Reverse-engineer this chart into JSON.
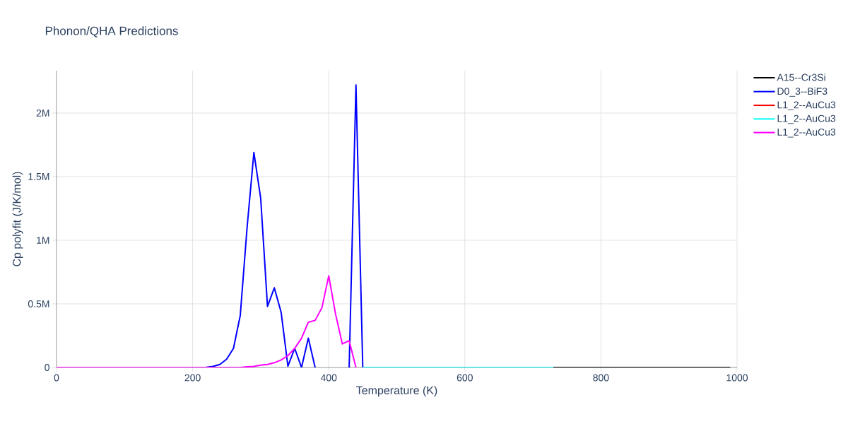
{
  "chart_data": {
    "type": "line",
    "title": "Phonon/QHA Predictions",
    "xlabel": "Temperature (K)",
    "ylabel": "Cp polyfit (J/K/mol)",
    "x": [
      0,
      10,
      20,
      30,
      40,
      50,
      60,
      70,
      80,
      90,
      100,
      110,
      120,
      130,
      140,
      150,
      160,
      170,
      180,
      190,
      200,
      210,
      220,
      230,
      240,
      250,
      260,
      270,
      280,
      290,
      300,
      310,
      320,
      330,
      340,
      350,
      360,
      370,
      380,
      390,
      400,
      410,
      420,
      430,
      440,
      450,
      460,
      470,
      480,
      490,
      500,
      510,
      520,
      530,
      540,
      550,
      560,
      570,
      580,
      590,
      600,
      610,
      620,
      630,
      640,
      650,
      660,
      670,
      680,
      690,
      700,
      710,
      720,
      730,
      740,
      750,
      760,
      770,
      780,
      790,
      800,
      810,
      820,
      830,
      840,
      850,
      860,
      870,
      880,
      890,
      900,
      910,
      920,
      930,
      940,
      950,
      960,
      970,
      980,
      990
    ],
    "series": [
      {
        "name": "A15--Cr3Si",
        "color": "#000000",
        "values": [
          null,
          null,
          null,
          null,
          null,
          null,
          null,
          null,
          null,
          null,
          null,
          null,
          null,
          null,
          null,
          null,
          null,
          null,
          null,
          null,
          null,
          null,
          null,
          null,
          null,
          null,
          null,
          null,
          null,
          null,
          null,
          null,
          null,
          null,
          null,
          null,
          null,
          null,
          null,
          null,
          null,
          null,
          null,
          null,
          null,
          null,
          null,
          null,
          null,
          null,
          null,
          null,
          null,
          null,
          null,
          null,
          null,
          null,
          null,
          null,
          null,
          null,
          null,
          null,
          null,
          null,
          null,
          null,
          null,
          null,
          null,
          null,
          null,
          0,
          0,
          0,
          0,
          0,
          0,
          0,
          0,
          0,
          0,
          0,
          0,
          0,
          0,
          0,
          0,
          0,
          0,
          0,
          0,
          0,
          0,
          0,
          0,
          0,
          0,
          0
        ]
      },
      {
        "name": "D0_3--BiF3",
        "color": "#0000ff",
        "values": [
          null,
          null,
          null,
          null,
          null,
          null,
          null,
          null,
          null,
          null,
          null,
          null,
          null,
          null,
          null,
          null,
          null,
          null,
          null,
          null,
          null,
          null,
          2000,
          8000,
          24000,
          65000,
          150000,
          410000,
          1100000,
          1690000,
          1330000,
          480000,
          626000,
          435000,
          10000,
          150000,
          0,
          230000,
          0,
          null,
          null,
          null,
          null,
          0,
          2220000,
          0,
          null,
          null,
          null,
          null,
          null,
          null,
          null,
          null,
          null,
          null,
          null,
          null,
          null,
          null,
          null,
          null,
          null,
          null,
          null,
          null,
          null,
          null,
          null,
          null,
          null,
          null,
          null,
          null,
          null,
          null,
          null,
          null,
          null,
          null,
          null,
          null,
          null,
          null,
          null,
          null,
          null,
          null,
          null,
          null,
          null,
          null,
          null,
          null,
          null,
          null,
          null,
          null,
          null,
          null
        ]
      },
      {
        "name": "L1_2--AuCu3",
        "color": "#ff0000",
        "values": [
          null,
          null,
          null,
          null,
          null,
          null,
          null,
          null,
          null,
          null,
          null,
          null,
          null,
          null,
          null,
          null,
          null,
          null,
          null,
          null,
          null,
          null,
          null,
          null,
          null,
          null,
          null,
          null,
          null,
          null,
          null,
          null,
          null,
          null,
          null,
          null,
          null,
          null,
          null,
          null,
          null,
          null,
          null,
          null,
          null,
          null,
          null,
          null,
          null,
          null,
          null,
          null,
          null,
          null,
          null,
          null,
          null,
          null,
          null,
          null,
          null,
          null,
          null,
          null,
          null,
          null,
          null,
          null,
          null,
          null,
          null,
          null,
          null,
          null,
          null,
          null,
          null,
          null,
          null,
          null,
          null,
          null,
          null,
          null,
          null,
          null,
          null,
          null,
          null,
          null,
          null,
          null,
          null,
          null,
          null,
          null,
          null,
          null,
          null,
          null
        ]
      },
      {
        "name": "L1_2--AuCu3",
        "color": "#00ffff",
        "values": [
          null,
          null,
          null,
          null,
          null,
          null,
          null,
          null,
          null,
          null,
          null,
          null,
          null,
          null,
          null,
          null,
          null,
          null,
          null,
          null,
          null,
          null,
          null,
          null,
          null,
          null,
          null,
          null,
          null,
          null,
          null,
          null,
          null,
          null,
          null,
          null,
          null,
          null,
          null,
          null,
          null,
          null,
          null,
          null,
          null,
          0,
          0,
          0,
          0,
          0,
          0,
          0,
          0,
          0,
          0,
          0,
          0,
          0,
          0,
          0,
          0,
          0,
          0,
          0,
          0,
          0,
          0,
          0,
          0,
          0,
          0,
          0,
          0,
          0,
          null,
          null,
          null,
          null,
          null,
          null,
          null,
          null,
          null,
          null,
          null,
          null,
          null,
          null,
          null,
          null,
          null,
          null,
          null,
          null,
          null,
          null,
          null,
          null,
          null,
          null
        ]
      },
      {
        "name": "L1_2--AuCu3",
        "color": "#ff00ff",
        "values": [
          0,
          0,
          0,
          0,
          0,
          0,
          0,
          0,
          0,
          0,
          0,
          0,
          0,
          0,
          0,
          0,
          0,
          0,
          0,
          0,
          0,
          0,
          0,
          0,
          0,
          0,
          0,
          0,
          5000,
          8000,
          18000,
          24000,
          37000,
          59000,
          93000,
          150000,
          230000,
          356000,
          370000,
          470000,
          720000,
          420000,
          185000,
          210000,
          0,
          null,
          null,
          null,
          null,
          null,
          null,
          null,
          null,
          null,
          null,
          null,
          null,
          null,
          null,
          null,
          null,
          null,
          null,
          null,
          null,
          null,
          null,
          null,
          null,
          null,
          null,
          null,
          null,
          null,
          null,
          null,
          null,
          null,
          null,
          null,
          null,
          null,
          null,
          null,
          null,
          null,
          null,
          null,
          null,
          null,
          null,
          null,
          null,
          null,
          null,
          null,
          null,
          null,
          null,
          null
        ]
      }
    ],
    "xlim": [
      0,
      1000
    ],
    "ylim": [
      0,
      2333000
    ],
    "xticks": [
      0,
      200,
      400,
      600,
      800,
      1000
    ],
    "yticks": [
      0,
      {
        "value": 500000,
        "label": "0.5M"
      },
      {
        "value": 1000000,
        "label": "1M"
      },
      {
        "value": 1500000,
        "label": "1.5M"
      },
      {
        "value": 2000000,
        "label": "2M"
      }
    ],
    "grid": true,
    "legend": "top right"
  }
}
